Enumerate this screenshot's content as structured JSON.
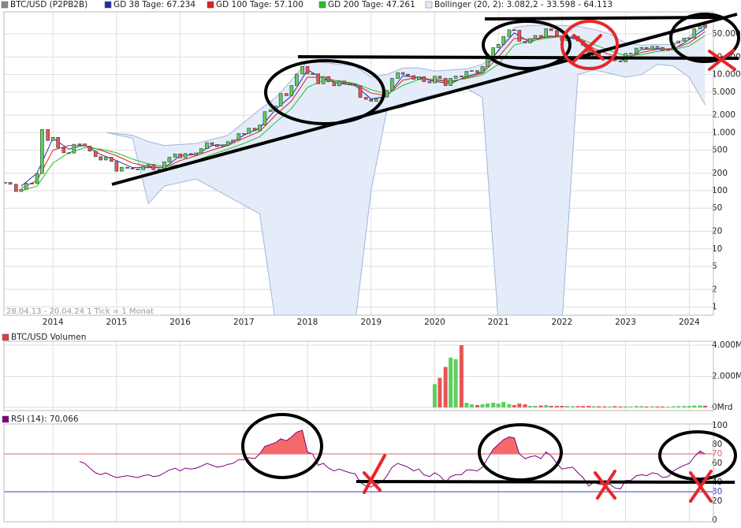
{
  "chart_data": {
    "type": "candlestick",
    "title": "BTC/USD (P2PB2B)",
    "color": "#888888",
    "up_color": "#5ccf5c",
    "down_color": "#e65555",
    "footnote": "28.04.13 - 20.04.24   1 Tick = 1 Monat",
    "log_scale": true,
    "grid": true,
    "xlim": [
      2013.23,
      2024.38
    ],
    "xticks": [
      2014,
      2015,
      2016,
      2017,
      2018,
      2019,
      2020,
      2021,
      2022,
      2023,
      2024
    ],
    "ylim": [
      0.72,
      120000
    ],
    "yticks": [
      1,
      2,
      5,
      10,
      20,
      50,
      100,
      200,
      500,
      {
        "value": 1000,
        "label": "1.000"
      },
      {
        "value": 2000,
        "label": "2.000"
      },
      {
        "value": 5000,
        "label": "5.000"
      },
      {
        "value": 10000,
        "label": "10.000"
      },
      {
        "value": 20000,
        "label": "20.000"
      },
      {
        "value": 50000,
        "label": "50.000"
      }
    ],
    "x": [
      2013.25,
      2013.33,
      2013.42,
      2013.5,
      2013.58,
      2013.67,
      2013.75,
      2013.83,
      2013.92,
      2014,
      2014.08,
      2014.17,
      2014.25,
      2014.33,
      2014.42,
      2014.5,
      2014.58,
      2014.67,
      2014.75,
      2014.83,
      2014.92,
      2015,
      2015.08,
      2015.17,
      2015.25,
      2015.33,
      2015.42,
      2015.5,
      2015.58,
      2015.67,
      2015.75,
      2015.83,
      2015.92,
      2016,
      2016.08,
      2016.17,
      2016.25,
      2016.33,
      2016.42,
      2016.5,
      2016.58,
      2016.67,
      2016.75,
      2016.83,
      2016.92,
      2017,
      2017.08,
      2017.17,
      2017.25,
      2017.33,
      2017.42,
      2017.5,
      2017.58,
      2017.67,
      2017.75,
      2017.83,
      2017.92,
      2018,
      2018.08,
      2018.17,
      2018.25,
      2018.33,
      2018.42,
      2018.5,
      2018.58,
      2018.67,
      2018.75,
      2018.83,
      2018.92,
      2019,
      2019.08,
      2019.17,
      2019.25,
      2019.33,
      2019.42,
      2019.5,
      2019.58,
      2019.67,
      2019.75,
      2019.83,
      2019.92,
      2020,
      2020.08,
      2020.17,
      2020.25,
      2020.33,
      2020.42,
      2020.5,
      2020.58,
      2020.67,
      2020.75,
      2020.83,
      2020.92,
      2021,
      2021.08,
      2021.17,
      2021.25,
      2021.33,
      2021.42,
      2021.5,
      2021.58,
      2021.67,
      2021.75,
      2021.83,
      2021.92,
      2022,
      2022.08,
      2022.17,
      2022.25,
      2022.33,
      2022.42,
      2022.5,
      2022.58,
      2022.67,
      2022.75,
      2022.83,
      2022.92,
      2023,
      2023.08,
      2023.17,
      2023.25,
      2023.33,
      2023.42,
      2023.5,
      2023.58,
      2023.67,
      2023.75,
      2023.83,
      2023.92,
      2024,
      2024.08,
      2024.17,
      2024.25
    ],
    "values": [
      139,
      129,
      97,
      106,
      135,
      133,
      198,
      1130,
      732,
      830,
      550,
      450,
      445,
      630,
      640,
      586,
      480,
      386,
      338,
      378,
      320,
      217,
      254,
      244,
      236,
      230,
      263,
      284,
      230,
      236,
      314,
      377,
      430,
      369,
      437,
      416,
      448,
      531,
      673,
      624,
      575,
      609,
      700,
      745,
      964,
      970,
      1190,
      1080,
      1350,
      2300,
      2480,
      2875,
      4700,
      4340,
      6470,
      10200,
      13800,
      10200,
      10300,
      6930,
      9240,
      7490,
      6400,
      7730,
      7030,
      6630,
      6370,
      4040,
      3740,
      3460,
      3850,
      4100,
      5320,
      8570,
      10800,
      10100,
      9600,
      8290,
      9200,
      7550,
      7190,
      9350,
      8600,
      6440,
      8630,
      9460,
      9140,
      11350,
      11650,
      10780,
      13800,
      19700,
      29000,
      33100,
      45200,
      58900,
      57700,
      37300,
      35000,
      41500,
      47100,
      43800,
      61300,
      57000,
      46300,
      38500,
      43200,
      45500,
      37700,
      31800,
      19900,
      23300,
      20050,
      19400,
      20500,
      17200,
      16550,
      23100,
      23150,
      28450,
      29250,
      27200,
      30500,
      29250,
      25900,
      26950,
      34650,
      37700,
      42300,
      42600,
      61200,
      71300,
      64100
    ],
    "series": [
      {
        "name": "GD 38 Tage: 67.234",
        "color": "#1f2fa8",
        "x": [
          2013.5,
          2013.75,
          2014,
          2014.25,
          2014.5,
          2014.75,
          2015,
          2015.25,
          2015.5,
          2015.75,
          2016,
          2016.25,
          2016.5,
          2016.75,
          2017,
          2017.25,
          2017.5,
          2017.75,
          2018,
          2018.25,
          2018.5,
          2018.75,
          2019,
          2019.25,
          2019.5,
          2019.75,
          2020,
          2020.25,
          2020.5,
          2020.75,
          2021,
          2021.25,
          2021.5,
          2021.75,
          2022,
          2022.25,
          2022.5,
          2022.75,
          2023,
          2023.25,
          2023.5,
          2023.75,
          2024,
          2024.25
        ],
        "values": [
          120,
          200,
          800,
          520,
          610,
          420,
          330,
          250,
          250,
          250,
          400,
          420,
          600,
          620,
          900,
          1200,
          2500,
          4300,
          12000,
          8500,
          7000,
          6500,
          3800,
          4200,
          9500,
          8800,
          7600,
          7000,
          9300,
          11000,
          26000,
          52000,
          36000,
          46000,
          45000,
          40000,
          21000,
          20000,
          17500,
          27000,
          28000,
          27000,
          40000,
          62000
        ]
      },
      {
        "name": "GD 100 Tage: 57.100",
        "color": "#e02020",
        "x": [
          2013.5,
          2013.75,
          2014,
          2014.25,
          2014.5,
          2014.75,
          2015,
          2015.25,
          2015.5,
          2015.75,
          2016,
          2016.25,
          2016.5,
          2016.75,
          2017,
          2017.25,
          2017.5,
          2017.75,
          2018,
          2018.25,
          2018.5,
          2018.75,
          2019,
          2019.25,
          2019.5,
          2019.75,
          2020,
          2020.25,
          2020.5,
          2020.75,
          2021,
          2021.25,
          2021.5,
          2021.75,
          2022,
          2022.25,
          2022.5,
          2022.75,
          2023,
          2023.25,
          2023.5,
          2023.75,
          2024,
          2024.25
        ],
        "values": [
          110,
          150,
          500,
          600,
          600,
          500,
          400,
          300,
          260,
          250,
          330,
          400,
          500,
          600,
          800,
          1050,
          2000,
          3500,
          9000,
          9000,
          7500,
          6800,
          4800,
          4300,
          8000,
          9000,
          8000,
          7500,
          8800,
          10500,
          20000,
          42000,
          40000,
          44000,
          46000,
          42000,
          28000,
          22000,
          19000,
          24000,
          27000,
          28000,
          35000,
          55000
        ]
      },
      {
        "name": "GD 200 Tage: 47.261",
        "color": "#22c022",
        "x": [
          2013.5,
          2013.75,
          2014,
          2014.25,
          2014.5,
          2014.75,
          2015,
          2015.25,
          2015.5,
          2015.75,
          2016,
          2016.25,
          2016.5,
          2016.75,
          2017,
          2017.25,
          2017.5,
          2017.75,
          2018,
          2018.25,
          2018.5,
          2018.75,
          2019,
          2019.25,
          2019.5,
          2019.75,
          2020,
          2020.25,
          2020.5,
          2020.75,
          2021,
          2021.25,
          2021.5,
          2021.75,
          2022,
          2022.25,
          2022.5,
          2022.75,
          2023,
          2023.25,
          2023.5,
          2023.75,
          2024,
          2024.25
        ],
        "values": [
          100,
          120,
          300,
          450,
          550,
          520,
          450,
          350,
          290,
          260,
          280,
          330,
          420,
          520,
          650,
          850,
          1500,
          2600,
          6000,
          8000,
          7800,
          7000,
          5500,
          4600,
          6500,
          8200,
          8300,
          7800,
          8500,
          9800,
          15000,
          32000,
          38000,
          42000,
          45000,
          43000,
          33000,
          26000,
          21000,
          22000,
          25000,
          27000,
          31000,
          47000
        ]
      }
    ],
    "bollinger": {
      "name": "Bollinger (20, 2): 3.082,2 - 33.598 - 64.113",
      "color": "#9fb6dc",
      "fill": "#e4ecfa",
      "x": [
        2014.85,
        2015.25,
        2015.5,
        2015.75,
        2016.25,
        2016.75,
        2017.25,
        2017.5,
        2017.75,
        2018,
        2018.25,
        2018.5,
        2018.75,
        2019,
        2019.25,
        2019.5,
        2019.75,
        2020,
        2020.25,
        2020.5,
        2020.75,
        2021,
        2021.25,
        2021.5,
        2021.75,
        2022,
        2022.25,
        2022.5,
        2022.75,
        2023,
        2023.25,
        2023.5,
        2023.75,
        2024,
        2024.25
      ],
      "upper": [
        1000,
        900,
        700,
        600,
        650,
        900,
        2500,
        4000,
        8000,
        17000,
        16000,
        15000,
        14000,
        9000,
        10000,
        13000,
        13000,
        11500,
        12000,
        12500,
        15000,
        25000,
        65000,
        70000,
        70000,
        70000,
        68000,
        60000,
        50000,
        35000,
        32000,
        33000,
        33000,
        45000,
        72000
      ],
      "lower": [
        1000,
        800,
        60,
        120,
        160,
        80,
        40,
        -200,
        -2000,
        -4000,
        -3000,
        -2000,
        -1000,
        100,
        2500,
        2700,
        3800,
        4500,
        5200,
        5800,
        4000,
        -3000,
        -15000,
        -20000,
        -10000,
        -2000,
        10000,
        12000,
        10500,
        9000,
        10000,
        15000,
        14000,
        9000,
        3000
      ]
    },
    "volume": {
      "title": "BTC/USD Volumen",
      "color": "#d84040",
      "ylim": [
        0,
        4000
      ],
      "yticks": [
        {
          "value": 0,
          "label": "0Mrd"
        },
        {
          "value": 2000,
          "label": "2.000Mrd"
        },
        {
          "value": 4000,
          "label": "4.000Mrd"
        }
      ],
      "values": [
        null,
        null,
        null,
        null,
        null,
        null,
        null,
        null,
        null,
        null,
        null,
        null,
        null,
        null,
        null,
        null,
        null,
        null,
        null,
        null,
        null,
        null,
        null,
        null,
        null,
        null,
        null,
        null,
        null,
        null,
        null,
        null,
        null,
        null,
        null,
        null,
        null,
        null,
        null,
        null,
        null,
        null,
        null,
        null,
        null,
        null,
        null,
        null,
        null,
        null,
        null,
        null,
        null,
        null,
        null,
        null,
        null,
        null,
        null,
        null,
        null,
        null,
        null,
        null,
        null,
        null,
        null,
        null,
        null,
        null,
        null,
        null,
        null,
        null,
        null,
        null,
        null,
        null,
        null,
        null,
        null,
        1500,
        1900,
        2600,
        3200,
        3100,
        4000,
        300,
        200,
        150,
        200,
        250,
        300,
        250,
        350,
        200,
        150,
        250,
        200,
        100,
        100,
        120,
        150,
        100,
        100,
        100,
        90,
        80,
        80,
        90,
        100,
        80,
        70,
        70,
        60,
        80,
        60,
        70,
        60,
        90,
        80,
        60,
        70,
        60,
        60,
        50,
        70,
        80,
        90,
        100,
        120,
        130,
        110
      ]
    },
    "rsi": {
      "title": "RSI (14): 70,066",
      "color": "#800080",
      "fill": "#f46a6a",
      "ylim": [
        0,
        100
      ],
      "yticks": [
        0,
        20,
        40,
        60,
        80,
        100
      ],
      "levels": [
        70,
        30
      ],
      "level_colors": [
        "#e06060",
        "#3a3ad0"
      ],
      "values": [
        null,
        null,
        null,
        null,
        null,
        null,
        null,
        null,
        null,
        null,
        null,
        null,
        null,
        null,
        62,
        60,
        55,
        50,
        48,
        50,
        47,
        45,
        46,
        47,
        46,
        45,
        47,
        48,
        46,
        47,
        50,
        53,
        55,
        52,
        55,
        54,
        55,
        57,
        60,
        58,
        56,
        57,
        59,
        60,
        64,
        64,
        66,
        65,
        70,
        78,
        80,
        82,
        86,
        84,
        88,
        93,
        95,
        72,
        70,
        58,
        60,
        55,
        52,
        54,
        52,
        50,
        49,
        40,
        36,
        35,
        38,
        40,
        47,
        56,
        60,
        58,
        56,
        52,
        54,
        48,
        46,
        50,
        47,
        40,
        46,
        48,
        48,
        53,
        53,
        52,
        56,
        65,
        75,
        80,
        85,
        88,
        87,
        70,
        65,
        67,
        68,
        65,
        72,
        68,
        60,
        54,
        55,
        56,
        50,
        45,
        36,
        40,
        38,
        37,
        38,
        34,
        33,
        42,
        42,
        47,
        48,
        47,
        50,
        49,
        45,
        46,
        52,
        55,
        58,
        60,
        67,
        73,
        70
      ]
    }
  }
}
